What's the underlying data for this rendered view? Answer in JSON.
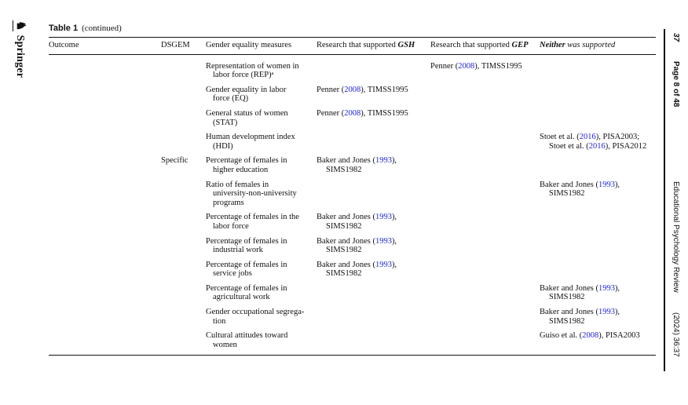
{
  "colors": {
    "link": "#2121DE",
    "ink": "#111111",
    "background": "#FFFFFF"
  },
  "icons": {
    "springer_knight": "♞"
  },
  "page": {
    "left_margin": {
      "publisher": "Springer"
    },
    "right_margin": {
      "article_number": "37",
      "page_info": "Page 8 of 48",
      "journal": "Educational Psychology Review",
      "issue": "(2024) 36:37"
    }
  },
  "table": {
    "title": "Table 1",
    "title_note": "(continued)",
    "columns": [
      {
        "label": [
          {
            "t": "Outcome"
          }
        ]
      },
      {
        "label": [
          {
            "t": "DSGEM"
          }
        ]
      },
      {
        "label": [
          {
            "t": "Gender equality measures"
          }
        ]
      },
      {
        "label": [
          {
            "t": "Research that supported "
          },
          {
            "bi": "GSH"
          }
        ]
      },
      {
        "label": [
          {
            "t": "Research that supported "
          },
          {
            "bi": "GEP"
          }
        ]
      },
      {
        "label": [
          {
            "bi": "Neither"
          },
          {
            "i": " was supported"
          }
        ]
      }
    ],
    "rows": [
      {
        "outcome": "",
        "dsgem": "",
        "measure": "Representation of women in\nlabor force (REP)ᵃ",
        "gsh": [],
        "gep": [
          {
            "t": "Penner ("
          },
          {
            "l": "2008"
          },
          {
            "t": "), TIMSS1995"
          }
        ],
        "neither": []
      },
      {
        "outcome": "",
        "dsgem": "",
        "measure": "Gender equality in labor\nforce (EQ)",
        "gsh": [
          {
            "t": "Penner ("
          },
          {
            "l": "2008"
          },
          {
            "t": "), TIMSS1995"
          }
        ],
        "gep": [],
        "neither": []
      },
      {
        "outcome": "",
        "dsgem": "",
        "measure": "General status of women\n(STAT)",
        "gsh": [
          {
            "t": "Penner ("
          },
          {
            "l": "2008"
          },
          {
            "t": "), TIMSS1995"
          }
        ],
        "gep": [],
        "neither": []
      },
      {
        "outcome": "",
        "dsgem": "",
        "measure": "Human development index\n(HDI)",
        "gsh": [],
        "gep": [],
        "neither": [
          {
            "t": "Stoet et al. ("
          },
          {
            "l": "2016"
          },
          {
            "t": "), PISA2003;\nStoet et al. ("
          },
          {
            "l": "2016"
          },
          {
            "t": "), PISA2012"
          }
        ]
      },
      {
        "outcome": "",
        "dsgem": "Specific",
        "measure": "Percentage of females in\nhigher education",
        "gsh": [
          {
            "t": "Baker and Jones ("
          },
          {
            "l": "1993"
          },
          {
            "t": "),\nSIMS1982"
          }
        ],
        "gep": [],
        "neither": []
      },
      {
        "outcome": "",
        "dsgem": "",
        "measure": "Ratio of females in\nuniversity-non-university\nprograms",
        "gsh": [],
        "gep": [],
        "neither": [
          {
            "t": "Baker and Jones ("
          },
          {
            "l": "1993"
          },
          {
            "t": "),\nSIMS1982"
          }
        ]
      },
      {
        "outcome": "",
        "dsgem": "",
        "measure": "Percentage of females in the\nlabor force",
        "gsh": [
          {
            "t": "Baker and Jones ("
          },
          {
            "l": "1993"
          },
          {
            "t": "),\nSIMS1982"
          }
        ],
        "gep": [],
        "neither": []
      },
      {
        "outcome": "",
        "dsgem": "",
        "measure": "Percentage of females in\nindustrial work",
        "gsh": [
          {
            "t": "Baker and Jones ("
          },
          {
            "l": "1993"
          },
          {
            "t": "),\nSIMS1982"
          }
        ],
        "gep": [],
        "neither": []
      },
      {
        "outcome": "",
        "dsgem": "",
        "measure": "Percentage of females in\nservice jobs",
        "gsh": [
          {
            "t": "Baker and Jones ("
          },
          {
            "l": "1993"
          },
          {
            "t": "),\nSIMS1982"
          }
        ],
        "gep": [],
        "neither": []
      },
      {
        "outcome": "",
        "dsgem": "",
        "measure": "Percentage of females in\nagricultural work",
        "gsh": [],
        "gep": [],
        "neither": [
          {
            "t": "Baker and Jones ("
          },
          {
            "l": "1993"
          },
          {
            "t": "),\nSIMS1982"
          }
        ]
      },
      {
        "outcome": "",
        "dsgem": "",
        "measure": "Gender occupational segrega-\ntion",
        "gsh": [],
        "gep": [],
        "neither": [
          {
            "t": "Baker and Jones ("
          },
          {
            "l": "1993"
          },
          {
            "t": "),\nSIMS1982"
          }
        ]
      },
      {
        "outcome": "",
        "dsgem": "",
        "measure": "Cultural attitudes toward\nwomen",
        "gsh": [],
        "gep": [],
        "neither": [
          {
            "t": "Guiso et al. ("
          },
          {
            "l": "2008"
          },
          {
            "t": "), PISA2003"
          }
        ]
      }
    ]
  }
}
